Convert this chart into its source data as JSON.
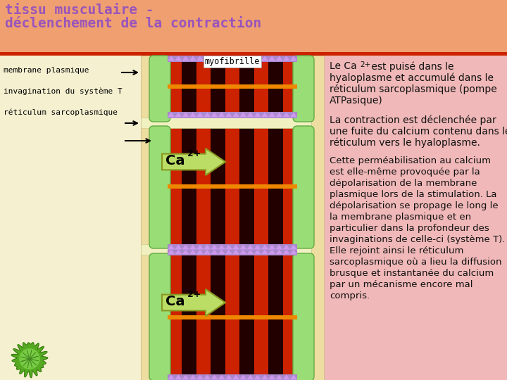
{
  "title_line1": "tissu musculaire -",
  "title_line2": "déclenchement de la contraction",
  "title_color": "#9955bb",
  "title_bg": "#f0a070",
  "title_bar_color": "#cc2200",
  "label1": "membrane plasmique",
  "label2": "invagination du système T",
  "label3": "réticulum sarcoplasmique",
  "myofibrille_label": "myofibrille",
  "salmon_bg": "#f0a070",
  "cream_bg": "#f5f0d0",
  "pink_cell_bg": "#f0c0b8",
  "light_yellow_tsys": "#f5f5c0",
  "membrane_color": "#f0e8a0",
  "reticulum_color": "#99dd77",
  "reticulum_edge": "#66aa44",
  "myofibril_red": "#cc2200",
  "myofibril_dark": "#220000",
  "purple_band": "#aa88cc",
  "orange_band": "#ee8800",
  "ca_arrow_fill": "#bbdd66",
  "ca_arrow_edge": "#889922",
  "right_panel_bg": "#f0b8b8",
  "text_color": "#111111"
}
